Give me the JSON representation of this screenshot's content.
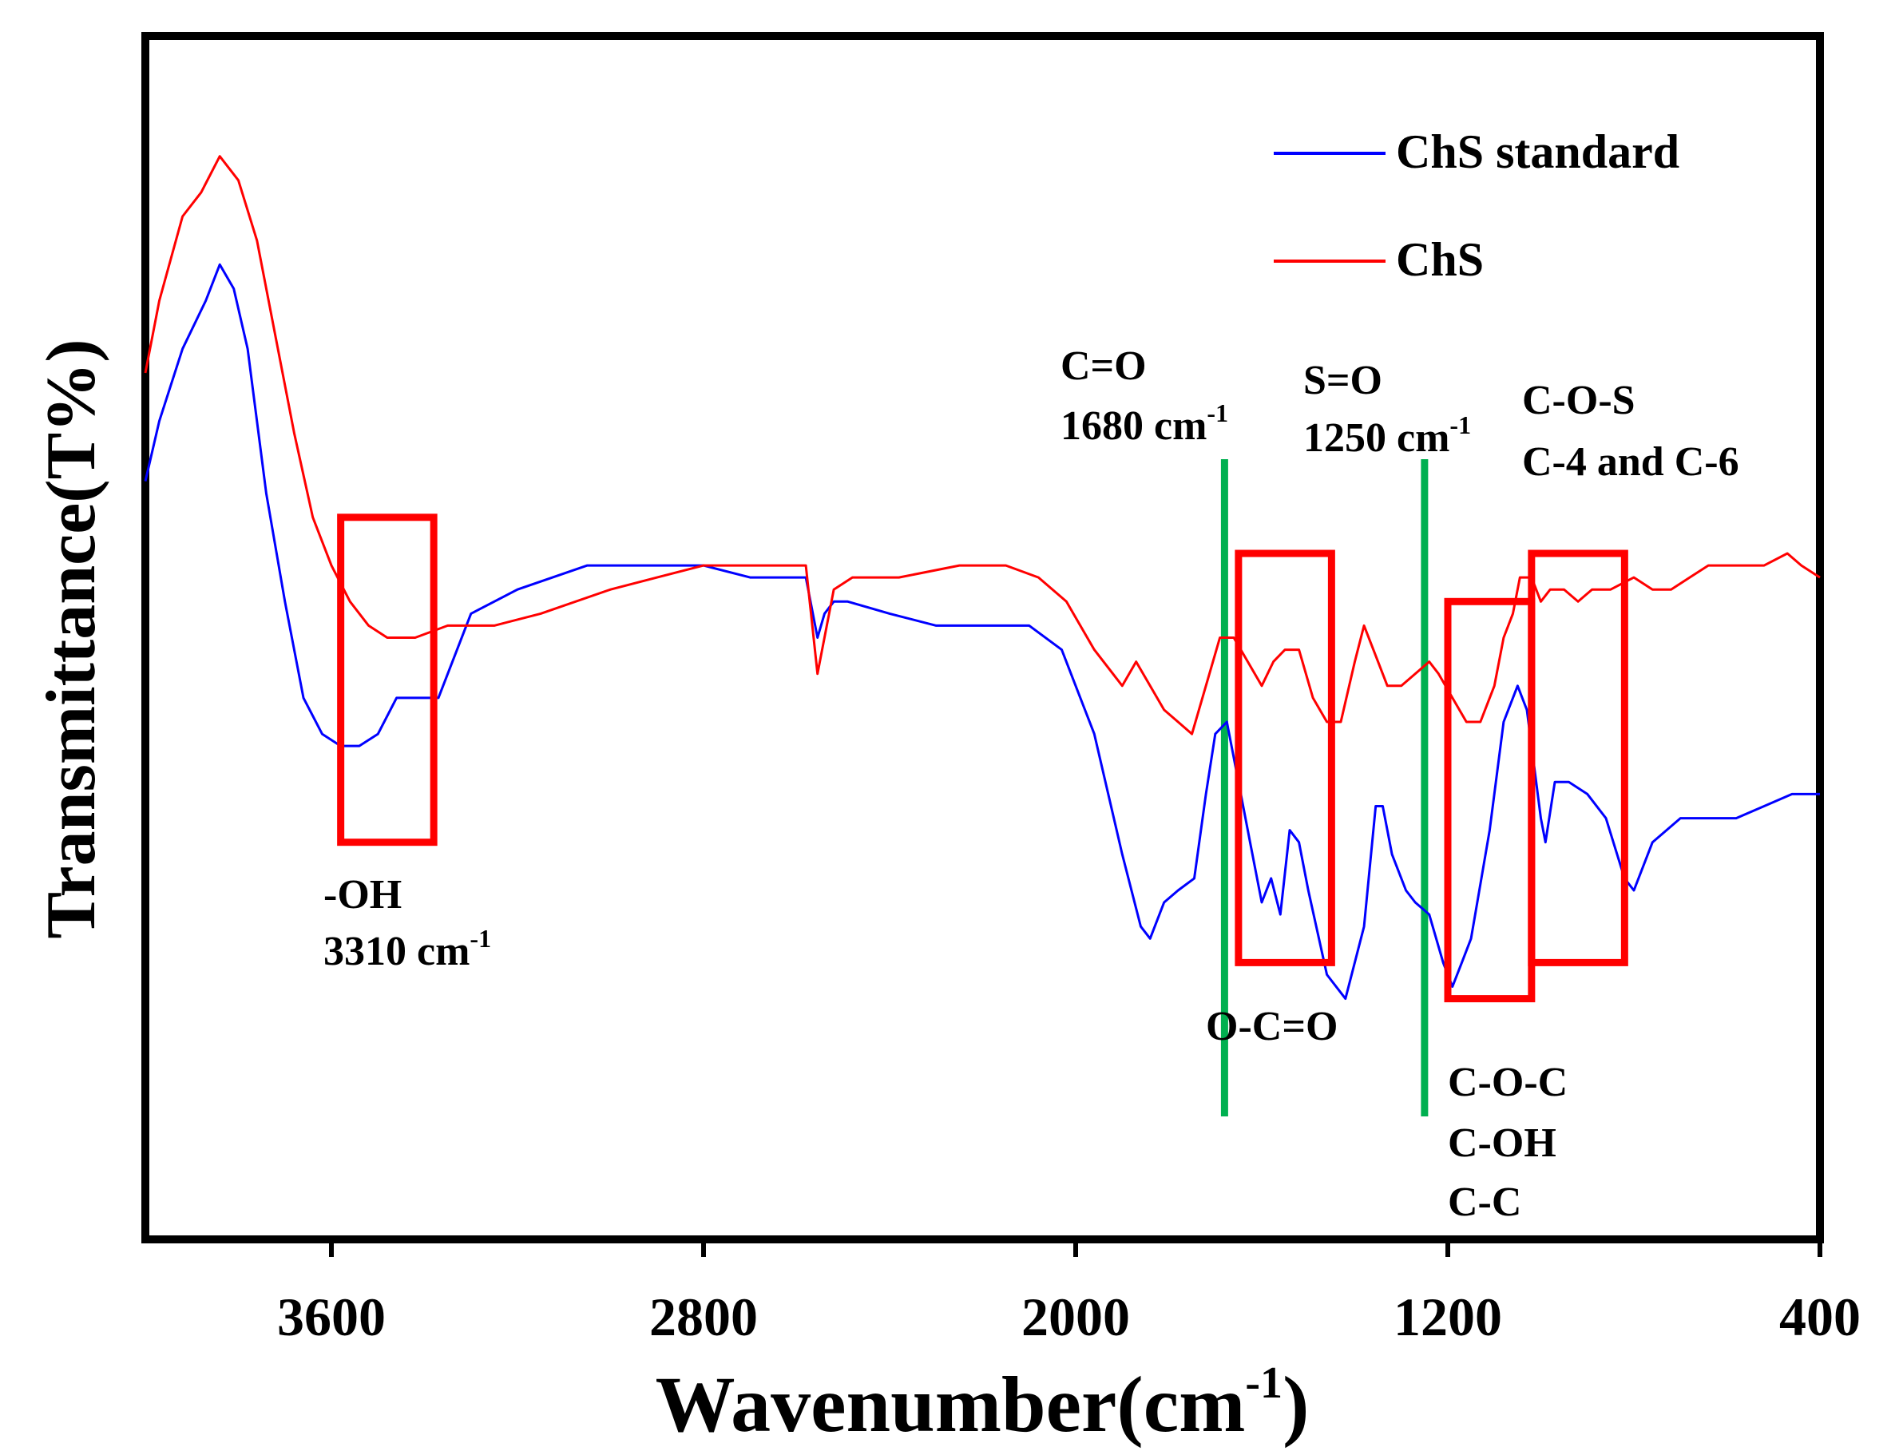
{
  "chart_data": {
    "type": "line",
    "title": "",
    "xlabel": "Wavenumber(cm",
    "xlabel_sup": "-1",
    "xlabel_end": ")",
    "ylabel": "Transmittance(T%)",
    "xlim": [
      4000,
      400
    ],
    "ylim": [
      0,
      100
    ],
    "x_reversed": true,
    "xticks": [
      {
        "value": 3600,
        "label": "3600"
      },
      {
        "value": 2800,
        "label": "2800"
      },
      {
        "value": 2000,
        "label": "2000"
      },
      {
        "value": 1200,
        "label": "1200"
      },
      {
        "value": 400,
        "label": "400"
      }
    ],
    "grid": false,
    "legend_position": "top-right",
    "series": [
      {
        "name": "ChS standard",
        "color": "#0000ff",
        "points": [
          [
            4000,
            63
          ],
          [
            3970,
            68
          ],
          [
            3920,
            74
          ],
          [
            3870,
            78
          ],
          [
            3840,
            81
          ],
          [
            3810,
            79
          ],
          [
            3780,
            74
          ],
          [
            3740,
            62
          ],
          [
            3700,
            53
          ],
          [
            3660,
            45
          ],
          [
            3620,
            42
          ],
          [
            3580,
            41
          ],
          [
            3540,
            41
          ],
          [
            3500,
            42
          ],
          [
            3460,
            45
          ],
          [
            3420,
            45
          ],
          [
            3370,
            45
          ],
          [
            3300,
            52
          ],
          [
            3200,
            54
          ],
          [
            3050,
            56
          ],
          [
            2900,
            56
          ],
          [
            2800,
            56
          ],
          [
            2700,
            55
          ],
          [
            2580,
            55
          ],
          [
            2555,
            50
          ],
          [
            2540,
            52
          ],
          [
            2520,
            53
          ],
          [
            2490,
            53
          ],
          [
            2400,
            52
          ],
          [
            2300,
            51
          ],
          [
            2200,
            51
          ],
          [
            2100,
            51
          ],
          [
            2030,
            49
          ],
          [
            1960,
            42
          ],
          [
            1900,
            32
          ],
          [
            1860,
            26
          ],
          [
            1840,
            25
          ],
          [
            1810,
            28
          ],
          [
            1780,
            29
          ],
          [
            1745,
            30
          ],
          [
            1720,
            37
          ],
          [
            1700,
            42
          ],
          [
            1675,
            43
          ],
          [
            1650,
            38
          ],
          [
            1625,
            33
          ],
          [
            1600,
            28
          ],
          [
            1580,
            30
          ],
          [
            1560,
            27
          ],
          [
            1540,
            34
          ],
          [
            1520,
            33
          ],
          [
            1500,
            29
          ],
          [
            1460,
            22
          ],
          [
            1420,
            20
          ],
          [
            1380,
            26
          ],
          [
            1355,
            36
          ],
          [
            1340,
            36
          ],
          [
            1320,
            32
          ],
          [
            1290,
            29
          ],
          [
            1270,
            28
          ],
          [
            1240,
            27
          ],
          [
            1210,
            23
          ],
          [
            1190,
            21
          ],
          [
            1170,
            23
          ],
          [
            1150,
            25
          ],
          [
            1110,
            34
          ],
          [
            1080,
            43
          ],
          [
            1050,
            46
          ],
          [
            1030,
            44
          ],
          [
            1000,
            35
          ],
          [
            990,
            33
          ],
          [
            970,
            38
          ],
          [
            940,
            38
          ],
          [
            900,
            37
          ],
          [
            860,
            35
          ],
          [
            820,
            30
          ],
          [
            800,
            29
          ],
          [
            760,
            33
          ],
          [
            700,
            35
          ],
          [
            640,
            35
          ],
          [
            580,
            35
          ],
          [
            520,
            36
          ],
          [
            460,
            37
          ],
          [
            400,
            37
          ]
        ]
      },
      {
        "name": "ChS",
        "color": "#ff0000",
        "points": [
          [
            4000,
            72
          ],
          [
            3970,
            78
          ],
          [
            3920,
            85
          ],
          [
            3880,
            87
          ],
          [
            3840,
            90
          ],
          [
            3800,
            88
          ],
          [
            3760,
            83
          ],
          [
            3720,
            75
          ],
          [
            3680,
            67
          ],
          [
            3640,
            60
          ],
          [
            3600,
            56
          ],
          [
            3560,
            53
          ],
          [
            3520,
            51
          ],
          [
            3480,
            50
          ],
          [
            3420,
            50
          ],
          [
            3350,
            51
          ],
          [
            3250,
            51
          ],
          [
            3150,
            52
          ],
          [
            3000,
            54
          ],
          [
            2900,
            55
          ],
          [
            2800,
            56
          ],
          [
            2700,
            56
          ],
          [
            2580,
            56
          ],
          [
            2555,
            47
          ],
          [
            2545,
            49
          ],
          [
            2520,
            54
          ],
          [
            2480,
            55
          ],
          [
            2380,
            55
          ],
          [
            2250,
            56
          ],
          [
            2150,
            56
          ],
          [
            2080,
            55
          ],
          [
            2020,
            53
          ],
          [
            1960,
            49
          ],
          [
            1900,
            46
          ],
          [
            1870,
            48
          ],
          [
            1840,
            46
          ],
          [
            1810,
            44
          ],
          [
            1780,
            43
          ],
          [
            1750,
            42
          ],
          [
            1720,
            46
          ],
          [
            1690,
            50
          ],
          [
            1660,
            50
          ],
          [
            1630,
            48
          ],
          [
            1600,
            46
          ],
          [
            1575,
            48
          ],
          [
            1550,
            49
          ],
          [
            1520,
            49
          ],
          [
            1490,
            45
          ],
          [
            1460,
            43
          ],
          [
            1430,
            43
          ],
          [
            1400,
            48
          ],
          [
            1380,
            51
          ],
          [
            1360,
            49
          ],
          [
            1330,
            46
          ],
          [
            1300,
            46
          ],
          [
            1270,
            47
          ],
          [
            1240,
            48
          ],
          [
            1220,
            47
          ],
          [
            1190,
            45
          ],
          [
            1160,
            43
          ],
          [
            1130,
            43
          ],
          [
            1100,
            46
          ],
          [
            1080,
            50
          ],
          [
            1060,
            52
          ],
          [
            1045,
            55
          ],
          [
            1020,
            55
          ],
          [
            1000,
            53
          ],
          [
            980,
            54
          ],
          [
            950,
            54
          ],
          [
            920,
            53
          ],
          [
            890,
            54
          ],
          [
            850,
            54
          ],
          [
            800,
            55
          ],
          [
            760,
            54
          ],
          [
            720,
            54
          ],
          [
            680,
            55
          ],
          [
            640,
            56
          ],
          [
            580,
            56
          ],
          [
            520,
            56
          ],
          [
            470,
            57
          ],
          [
            440,
            56
          ],
          [
            400,
            55
          ]
        ]
      }
    ],
    "legend": [
      {
        "label": "ChS standard",
        "color": "#0000ff"
      },
      {
        "label": "ChS",
        "color": "#ff0000"
      }
    ],
    "peak_lines": [
      {
        "wavenumber": 1680,
        "color": "#00b050"
      },
      {
        "wavenumber": 1250,
        "color": "#00b050"
      }
    ],
    "highlight_boxes": [
      {
        "from": 3580,
        "to": 3380,
        "top": 60,
        "bottom": 33,
        "color": "#ff0000"
      },
      {
        "from": 1650,
        "to": 1450,
        "top": 57,
        "bottom": 23,
        "color": "#ff0000"
      },
      {
        "from": 1200,
        "to": 1020,
        "top": 53,
        "bottom": 20,
        "color": "#ff0000"
      },
      {
        "from": 1020,
        "to": 820,
        "top": 57,
        "bottom": 23,
        "color": "#ff0000"
      }
    ],
    "annotations": [
      {
        "id": "oh",
        "lines": [
          {
            "text": "-OH"
          },
          {
            "text": "3310 cm",
            "sup": "-1"
          }
        ]
      },
      {
        "id": "co",
        "lines": [
          {
            "text": "C=O"
          },
          {
            "text": "1680 cm",
            "sup": "-1"
          }
        ]
      },
      {
        "id": "so",
        "lines": [
          {
            "text": "S=O"
          },
          {
            "text": "1250 cm",
            "sup": "-1"
          }
        ]
      },
      {
        "id": "cos",
        "lines": [
          {
            "text": "C-O-S"
          },
          {
            "text": "C-4 and C-6"
          }
        ]
      },
      {
        "id": "oco",
        "lines": [
          {
            "text": "O-C=O"
          }
        ]
      },
      {
        "id": "coc",
        "lines": [
          {
            "text": "C-O-C"
          },
          {
            "text": "C-OH"
          },
          {
            "text": "C-C"
          }
        ]
      }
    ]
  }
}
